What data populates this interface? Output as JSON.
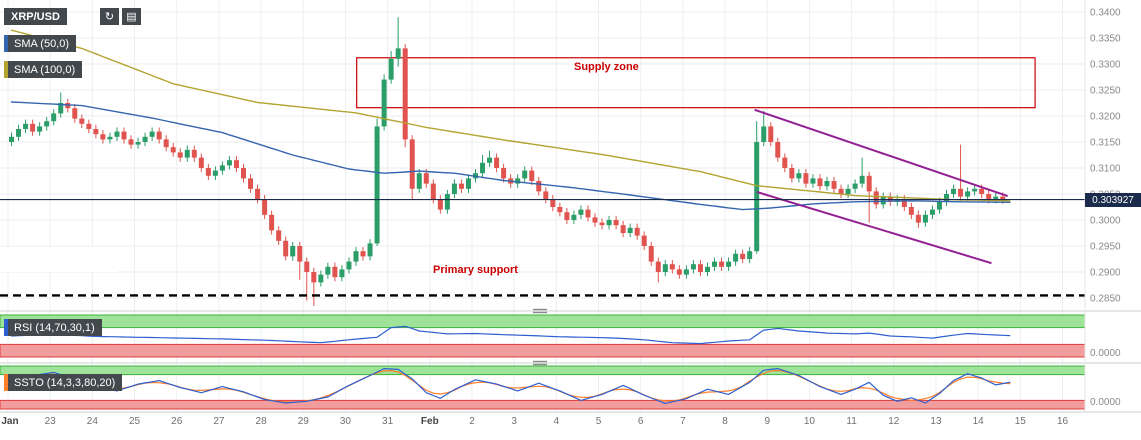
{
  "toolbar": {
    "symbol": "XRP/USD",
    "refresh_glyph": "↻",
    "camera_glyph": "▤"
  },
  "legend": {
    "sma50_label": "SMA (50,0)",
    "sma100_label": "SMA (100,0)"
  },
  "panes": {
    "rsi_label": "RSI (14,70,30,1)",
    "rsi_axis": "0.0000",
    "ssto_label": "SSTO (14,3,3,80,20)",
    "ssto_axis": "0.0000"
  },
  "annotations": {
    "supply_zone_label": "Supply zone",
    "primary_support_label": "Primary support"
  },
  "price_badge": {
    "value": "0.303927"
  },
  "price_axis": {
    "labels": [
      "0.3400",
      "0.3350",
      "0.3300",
      "0.3250",
      "0.3200",
      "0.3150",
      "0.3100",
      "0.3050",
      "0.3000",
      "0.2950",
      "0.2900",
      "0.2850"
    ]
  },
  "time_axis": {
    "labels": [
      "Jan",
      "23",
      "24",
      "25",
      "26",
      "27",
      "28",
      "29",
      "30",
      "31",
      "Feb",
      "2",
      "3",
      "4",
      "5",
      "6",
      "7",
      "8",
      "9",
      "10",
      "11",
      "12",
      "13",
      "14",
      "15",
      "16"
    ]
  },
  "colors": {
    "up": "#2a9d68",
    "down": "#e0534e",
    "sma50": "#3565ae",
    "sma100": "#b3a431",
    "rsi_line": "#2d5fd0",
    "ssto_k": "#2d5fd0",
    "ssto_d": "#ff7f2a",
    "band_green": "#9fe39b",
    "band_green_border": "#3db33d",
    "band_red": "#f29d9d",
    "band_red_border": "#e03c3c",
    "wedge": "#941f93",
    "annotation_red": "#cc0000",
    "grid": "#eceef1",
    "axis_text": "#8a8a8a",
    "time_text": "#6f6f6f",
    "badge_bg": "#43484d",
    "price_line": "#1a2b4c",
    "separator": "#cfcfcf"
  },
  "chart_data": {
    "type": "candlestick",
    "symbol": "XRP/USD",
    "last_price": 0.303927,
    "price_range_top": 0.34,
    "price_step": 0.005,
    "candles": [
      [
        0.315,
        0.3168,
        0.3142,
        0.316
      ],
      [
        0.316,
        0.3183,
        0.3152,
        0.3175
      ],
      [
        0.3175,
        0.3193,
        0.3167,
        0.3185
      ],
      [
        0.3185,
        0.3193,
        0.3162,
        0.317
      ],
      [
        0.317,
        0.3188,
        0.3162,
        0.318
      ],
      [
        0.318,
        0.3198,
        0.3172,
        0.319
      ],
      [
        0.319,
        0.3213,
        0.3182,
        0.3205
      ],
      [
        0.3205,
        0.3245,
        0.3197,
        0.3225
      ],
      [
        0.3225,
        0.3233,
        0.3207,
        0.3215
      ],
      [
        0.3215,
        0.3223,
        0.3187,
        0.3195
      ],
      [
        0.3195,
        0.3203,
        0.3177,
        0.3185
      ],
      [
        0.3185,
        0.3193,
        0.3167,
        0.3175
      ],
      [
        0.3175,
        0.3183,
        0.3157,
        0.3165
      ],
      [
        0.3165,
        0.3173,
        0.3147,
        0.3155
      ],
      [
        0.3155,
        0.3168,
        0.3147,
        0.316
      ],
      [
        0.316,
        0.3178,
        0.3152,
        0.317
      ],
      [
        0.317,
        0.3178,
        0.3147,
        0.3155
      ],
      [
        0.3155,
        0.3163,
        0.3137,
        0.3145
      ],
      [
        0.3145,
        0.3158,
        0.3137,
        0.315
      ],
      [
        0.315,
        0.3168,
        0.3142,
        0.316
      ],
      [
        0.316,
        0.3178,
        0.3152,
        0.317
      ],
      [
        0.317,
        0.3178,
        0.3147,
        0.3155
      ],
      [
        0.3155,
        0.3163,
        0.3132,
        0.314
      ],
      [
        0.314,
        0.3148,
        0.3122,
        0.313
      ],
      [
        0.313,
        0.3138,
        0.3112,
        0.312
      ],
      [
        0.312,
        0.3143,
        0.3112,
        0.3135
      ],
      [
        0.3135,
        0.3143,
        0.3112,
        0.312
      ],
      [
        0.312,
        0.3128,
        0.3092,
        0.31
      ],
      [
        0.31,
        0.3108,
        0.3077,
        0.3085
      ],
      [
        0.3085,
        0.3103,
        0.3077,
        0.3095
      ],
      [
        0.3095,
        0.3113,
        0.3087,
        0.3105
      ],
      [
        0.3105,
        0.3123,
        0.3097,
        0.3115
      ],
      [
        0.3115,
        0.3123,
        0.3092,
        0.31
      ],
      [
        0.31,
        0.3108,
        0.3072,
        0.308
      ],
      [
        0.308,
        0.3088,
        0.3052,
        0.306
      ],
      [
        0.306,
        0.3068,
        0.3032,
        0.304
      ],
      [
        0.304,
        0.3048,
        0.3002,
        0.301
      ],
      [
        0.301,
        0.3018,
        0.2972,
        0.298
      ],
      [
        0.298,
        0.2988,
        0.2952,
        0.296
      ],
      [
        0.296,
        0.2968,
        0.2922,
        0.293
      ],
      [
        0.293,
        0.2958,
        0.2922,
        0.295
      ],
      [
        0.295,
        0.2958,
        0.2885,
        0.292
      ],
      [
        0.292,
        0.2928,
        0.2845,
        0.29
      ],
      [
        0.29,
        0.2908,
        0.2835,
        0.288
      ],
      [
        0.288,
        0.2903,
        0.2872,
        0.2895
      ],
      [
        0.2895,
        0.2918,
        0.2887,
        0.291
      ],
      [
        0.291,
        0.2918,
        0.2882,
        0.289
      ],
      [
        0.289,
        0.2913,
        0.2882,
        0.2905
      ],
      [
        0.2905,
        0.2928,
        0.2897,
        0.292
      ],
      [
        0.292,
        0.2948,
        0.2912,
        0.294
      ],
      [
        0.294,
        0.2948,
        0.2922,
        0.293
      ],
      [
        0.293,
        0.2963,
        0.2922,
        0.2955
      ],
      [
        0.2955,
        0.3195,
        0.295,
        0.318
      ],
      [
        0.318,
        0.328,
        0.3172,
        0.327
      ],
      [
        0.327,
        0.3325,
        0.3262,
        0.331
      ],
      [
        0.331,
        0.339,
        0.3295,
        0.333
      ],
      [
        0.333,
        0.3338,
        0.314,
        0.3155
      ],
      [
        0.3155,
        0.3163,
        0.304,
        0.306
      ],
      [
        0.306,
        0.3098,
        0.3052,
        0.309
      ],
      [
        0.309,
        0.3098,
        0.3062,
        0.307
      ],
      [
        0.307,
        0.3078,
        0.3032,
        0.304
      ],
      [
        0.304,
        0.3048,
        0.3012,
        0.302
      ],
      [
        0.302,
        0.3058,
        0.3012,
        0.305
      ],
      [
        0.305,
        0.3078,
        0.3042,
        0.307
      ],
      [
        0.307,
        0.3078,
        0.3052,
        0.306
      ],
      [
        0.306,
        0.3088,
        0.3052,
        0.308
      ],
      [
        0.308,
        0.3098,
        0.3072,
        0.309
      ],
      [
        0.309,
        0.3125,
        0.3082,
        0.311
      ],
      [
        0.311,
        0.3133,
        0.3102,
        0.312
      ],
      [
        0.312,
        0.3128,
        0.3092,
        0.31
      ],
      [
        0.31,
        0.3108,
        0.3072,
        0.308
      ],
      [
        0.308,
        0.3088,
        0.3062,
        0.307
      ],
      [
        0.307,
        0.3088,
        0.3062,
        0.308
      ],
      [
        0.308,
        0.3103,
        0.3072,
        0.3095
      ],
      [
        0.3095,
        0.3103,
        0.3067,
        0.3075
      ],
      [
        0.3075,
        0.3083,
        0.3047,
        0.3055
      ],
      [
        0.3055,
        0.3063,
        0.3032,
        0.304
      ],
      [
        0.304,
        0.3048,
        0.3017,
        0.3025
      ],
      [
        0.3025,
        0.3033,
        0.3007,
        0.3015
      ],
      [
        0.3015,
        0.3023,
        0.2992,
        0.3
      ],
      [
        0.3,
        0.3018,
        0.2992,
        0.301
      ],
      [
        0.301,
        0.3028,
        0.3002,
        0.302
      ],
      [
        0.302,
        0.3028,
        0.2997,
        0.3005
      ],
      [
        0.3005,
        0.3013,
        0.2987,
        0.2995
      ],
      [
        0.2995,
        0.3003,
        0.2982,
        0.299
      ],
      [
        0.299,
        0.3008,
        0.2982,
        0.3
      ],
      [
        0.3,
        0.3008,
        0.2982,
        0.299
      ],
      [
        0.299,
        0.2998,
        0.2967,
        0.2975
      ],
      [
        0.2975,
        0.2993,
        0.2967,
        0.2985
      ],
      [
        0.2985,
        0.2993,
        0.2962,
        0.297
      ],
      [
        0.297,
        0.2978,
        0.2942,
        0.295
      ],
      [
        0.295,
        0.2958,
        0.2912,
        0.292
      ],
      [
        0.292,
        0.2928,
        0.288,
        0.29
      ],
      [
        0.29,
        0.2923,
        0.2892,
        0.2915
      ],
      [
        0.2915,
        0.2923,
        0.2897,
        0.2905
      ],
      [
        0.2905,
        0.2913,
        0.2887,
        0.2895
      ],
      [
        0.2895,
        0.2913,
        0.2887,
        0.2905
      ],
      [
        0.2905,
        0.2923,
        0.2897,
        0.2915
      ],
      [
        0.2915,
        0.2923,
        0.2892,
        0.29
      ],
      [
        0.29,
        0.2918,
        0.2892,
        0.291
      ],
      [
        0.291,
        0.2928,
        0.2902,
        0.292
      ],
      [
        0.292,
        0.2928,
        0.2902,
        0.291
      ],
      [
        0.291,
        0.2928,
        0.2902,
        0.292
      ],
      [
        0.292,
        0.2943,
        0.2912,
        0.2935
      ],
      [
        0.2935,
        0.2943,
        0.2917,
        0.2925
      ],
      [
        0.2925,
        0.2948,
        0.2917,
        0.294
      ],
      [
        0.294,
        0.319,
        0.2935,
        0.315
      ],
      [
        0.315,
        0.321,
        0.3142,
        0.318
      ],
      [
        0.318,
        0.3188,
        0.3142,
        0.315
      ],
      [
        0.315,
        0.3158,
        0.3112,
        0.312
      ],
      [
        0.312,
        0.3128,
        0.3092,
        0.31
      ],
      [
        0.31,
        0.3108,
        0.3072,
        0.308
      ],
      [
        0.308,
        0.3098,
        0.3072,
        0.309
      ],
      [
        0.309,
        0.3098,
        0.3062,
        0.307
      ],
      [
        0.307,
        0.3088,
        0.3062,
        0.308
      ],
      [
        0.308,
        0.3088,
        0.3057,
        0.3065
      ],
      [
        0.3065,
        0.3083,
        0.3057,
        0.3075
      ],
      [
        0.3075,
        0.3083,
        0.3052,
        0.306
      ],
      [
        0.306,
        0.3068,
        0.3042,
        0.305
      ],
      [
        0.305,
        0.3068,
        0.3042,
        0.306
      ],
      [
        0.306,
        0.3078,
        0.3052,
        0.307
      ],
      [
        0.307,
        0.312,
        0.3062,
        0.3085
      ],
      [
        0.3085,
        0.3093,
        0.2995,
        0.3055
      ],
      [
        0.3055,
        0.3063,
        0.3022,
        0.303
      ],
      [
        0.303,
        0.3053,
        0.3022,
        0.3045
      ],
      [
        0.3045,
        0.3053,
        0.3027,
        0.3035
      ],
      [
        0.3035,
        0.3048,
        0.3027,
        0.304
      ],
      [
        0.304,
        0.3048,
        0.3017,
        0.3025
      ],
      [
        0.3025,
        0.3033,
        0.3002,
        0.301
      ],
      [
        0.301,
        0.3018,
        0.2985,
        0.2995
      ],
      [
        0.2995,
        0.3018,
        0.2987,
        0.301
      ],
      [
        0.301,
        0.3028,
        0.3002,
        0.302
      ],
      [
        0.302,
        0.3043,
        0.3012,
        0.3035
      ],
      [
        0.3035,
        0.3058,
        0.3027,
        0.305
      ],
      [
        0.305,
        0.3068,
        0.3042,
        0.306
      ],
      [
        0.306,
        0.3145,
        0.3037,
        0.3045
      ],
      [
        0.3045,
        0.3063,
        0.3037,
        0.3055
      ],
      [
        0.3055,
        0.3068,
        0.3047,
        0.306
      ],
      [
        0.306,
        0.3068,
        0.3042,
        0.305
      ],
      [
        0.305,
        0.3058,
        0.3032,
        0.304
      ],
      [
        0.304,
        0.3053,
        0.3032,
        0.3045
      ],
      [
        0.3045,
        0.3053,
        0.3031,
        0.3039
      ]
    ],
    "sma50_points": [
      [
        0,
        0.3227
      ],
      [
        10,
        0.322
      ],
      [
        20,
        0.3196
      ],
      [
        30,
        0.3168
      ],
      [
        40,
        0.3125
      ],
      [
        48,
        0.3098
      ],
      [
        53,
        0.309
      ],
      [
        58,
        0.3094
      ],
      [
        63,
        0.309
      ],
      [
        70,
        0.3076
      ],
      [
        80,
        0.3062
      ],
      [
        88,
        0.3048
      ],
      [
        98,
        0.303
      ],
      [
        104,
        0.302
      ],
      [
        108,
        0.3023
      ],
      [
        114,
        0.3031
      ],
      [
        120,
        0.3035
      ],
      [
        128,
        0.3037
      ],
      [
        135,
        0.3035
      ],
      [
        142,
        0.3034
      ]
    ],
    "sma100_points": [
      [
        0,
        0.3365
      ],
      [
        10,
        0.333
      ],
      [
        23,
        0.3262
      ],
      [
        35,
        0.3226
      ],
      [
        49,
        0.3206
      ],
      [
        59,
        0.3178
      ],
      [
        70,
        0.3154
      ],
      [
        84,
        0.3126
      ],
      [
        98,
        0.3093
      ],
      [
        106,
        0.3066
      ],
      [
        120,
        0.3047
      ],
      [
        134,
        0.3039
      ],
      [
        142,
        0.3037
      ]
    ],
    "supply_zone": {
      "top": 0.3312,
      "bottom": 0.3216,
      "start_index": 49.6,
      "end_index": 146.1
    },
    "support_dashed_price": 0.2855,
    "primary_support_price": 0.2902,
    "wedge_upper": [
      [
        105.7,
        0.3212
      ],
      [
        141.7,
        0.3046
      ]
    ],
    "wedge_lower": [
      [
        106.0,
        0.3054
      ],
      [
        139.4,
        0.2917
      ]
    ],
    "rsi": {
      "levels_upper": 70,
      "levels_lower": 30,
      "points": [
        [
          0,
          50
        ],
        [
          6,
          54
        ],
        [
          12,
          49
        ],
        [
          18,
          47
        ],
        [
          24,
          45
        ],
        [
          30,
          43
        ],
        [
          36,
          40
        ],
        [
          40,
          37
        ],
        [
          44,
          34
        ],
        [
          48,
          41
        ],
        [
          52,
          47
        ],
        [
          54,
          70
        ],
        [
          56,
          73
        ],
        [
          58,
          62
        ],
        [
          62,
          55
        ],
        [
          66,
          56
        ],
        [
          70,
          53
        ],
        [
          74,
          51
        ],
        [
          78,
          48
        ],
        [
          82,
          47
        ],
        [
          86,
          45
        ],
        [
          90,
          41
        ],
        [
          94,
          34
        ],
        [
          98,
          32
        ],
        [
          102,
          38
        ],
        [
          105,
          41
        ],
        [
          107,
          64
        ],
        [
          109,
          68
        ],
        [
          112,
          62
        ],
        [
          116,
          57
        ],
        [
          120,
          55
        ],
        [
          122,
          57
        ],
        [
          125,
          50
        ],
        [
          128,
          48
        ],
        [
          131,
          45
        ],
        [
          134,
          52
        ],
        [
          136,
          56
        ],
        [
          139,
          53
        ],
        [
          142,
          51
        ]
      ]
    },
    "ssto": {
      "levels_upper": 80,
      "levels_lower": 20,
      "k_points": [
        [
          0,
          62
        ],
        [
          3,
          78
        ],
        [
          6,
          85
        ],
        [
          9,
          70
        ],
        [
          12,
          50
        ],
        [
          15,
          42
        ],
        [
          18,
          58
        ],
        [
          21,
          66
        ],
        [
          24,
          50
        ],
        [
          27,
          38
        ],
        [
          30,
          52
        ],
        [
          33,
          40
        ],
        [
          36,
          22
        ],
        [
          39,
          14
        ],
        [
          42,
          18
        ],
        [
          45,
          28
        ],
        [
          48,
          55
        ],
        [
          51,
          78
        ],
        [
          53,
          94
        ],
        [
          55,
          92
        ],
        [
          57,
          70
        ],
        [
          59,
          38
        ],
        [
          61,
          25
        ],
        [
          63,
          45
        ],
        [
          66,
          68
        ],
        [
          69,
          58
        ],
        [
          72,
          42
        ],
        [
          75,
          60
        ],
        [
          78,
          42
        ],
        [
          81,
          20
        ],
        [
          84,
          34
        ],
        [
          87,
          55
        ],
        [
          90,
          32
        ],
        [
          93,
          13
        ],
        [
          96,
          24
        ],
        [
          99,
          46
        ],
        [
          102,
          34
        ],
        [
          105,
          62
        ],
        [
          107,
          90
        ],
        [
          109,
          94
        ],
        [
          112,
          78
        ],
        [
          115,
          52
        ],
        [
          118,
          34
        ],
        [
          120,
          46
        ],
        [
          122,
          62
        ],
        [
          124,
          32
        ],
        [
          126,
          18
        ],
        [
          128,
          26
        ],
        [
          130,
          14
        ],
        [
          132,
          36
        ],
        [
          134,
          66
        ],
        [
          136,
          82
        ],
        [
          138,
          72
        ],
        [
          140,
          56
        ],
        [
          142,
          62
        ]
      ]
    }
  }
}
